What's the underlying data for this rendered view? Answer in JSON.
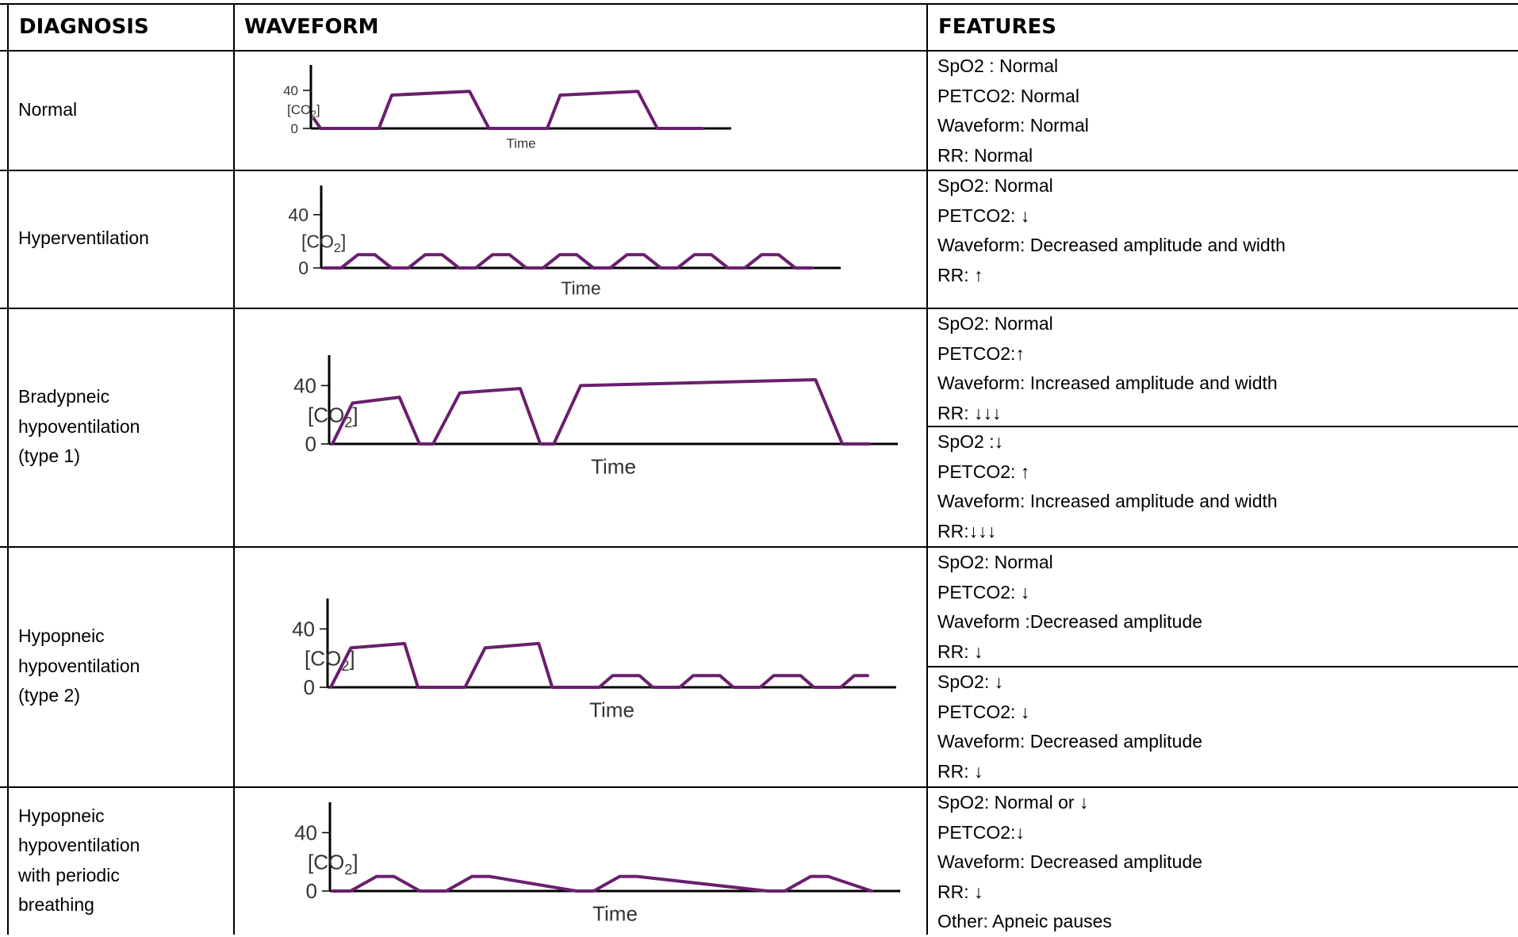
{
  "headers": {
    "diagnosis": "DIAGNOSIS",
    "waveform": "WAVEFORM",
    "features": "FEATURES"
  },
  "waveform_labels": {
    "y_high": "40",
    "y_low": "0",
    "y_label": "[CO2]",
    "x_label": "Time"
  },
  "colors": {
    "trace": "#6a1f6e",
    "grid": "#000000"
  },
  "rows": [
    {
      "diagnosis": [
        "Normal"
      ],
      "features": [
        [
          "SpO2 : Normal",
          "PETCO2: Normal",
          "Waveform: Normal",
          "RR: Normal"
        ]
      ]
    },
    {
      "diagnosis": [
        "Hyperventilation"
      ],
      "features": [
        [
          "SpO2:  Normal",
          "PETCO2:  ↓",
          "Waveform: Decreased amplitude and width",
          "RR: ↑"
        ]
      ]
    },
    {
      "diagnosis": [
        "Bradypneic",
        "hypoventilation",
        "(type 1)"
      ],
      "features": [
        [
          "SpO2: Normal",
          "PETCO2:↑",
          "Waveform: Increased amplitude and width",
          "RR: ↓↓↓"
        ],
        [
          "SpO2 :↓",
          "PETCO2: ↑",
          "Waveform: Increased amplitude and width",
          "RR:↓↓↓"
        ]
      ]
    },
    {
      "diagnosis": [
        "Hypopneic",
        "hypoventilation",
        "(type 2)"
      ],
      "features": [
        [
          "SpO2: Normal",
          "PETCO2: ↓",
          "Waveform :Decreased amplitude",
          "RR: ↓"
        ],
        [
          "SpO2: ↓",
          "PETCO2: ↓",
          "Waveform: Decreased amplitude",
          "RR: ↓"
        ]
      ]
    },
    {
      "diagnosis": [
        "Hypopneic",
        "hypoventilation",
        "with periodic",
        "breathing"
      ],
      "features": [
        [
          "SpO2: Normal or ↓",
          "PETCO2:↓",
          "Waveform: Decreased amplitude",
          "RR: ↓",
          "Other: Apneic pauses"
        ]
      ]
    }
  ],
  "chart_data": [
    {
      "type": "line",
      "name": "normal",
      "xlabel": "Time",
      "ylabel": "[CO2]",
      "yticks": [
        0,
        40
      ],
      "ylim": [
        0,
        50
      ],
      "x": [
        0,
        1,
        2,
        10,
        12,
        24,
        27,
        36,
        38,
        50,
        53,
        60
      ],
      "y": [
        10,
        0,
        0,
        0,
        35,
        39,
        0,
        0,
        35,
        39,
        0,
        0
      ]
    },
    {
      "type": "line",
      "name": "hyperventilation",
      "xlabel": "Time",
      "ylabel": "[CO2]",
      "yticks": [
        0,
        40
      ],
      "ylim": [
        0,
        50
      ],
      "x": [
        0,
        2,
        4,
        6,
        8,
        10,
        12,
        14,
        16,
        18,
        20,
        22,
        24,
        26,
        28,
        30,
        32,
        34,
        36,
        38,
        40,
        42,
        44,
        46,
        48,
        50,
        52,
        54,
        56,
        58
      ],
      "y": [
        0,
        0,
        10,
        10,
        0,
        0,
        10,
        10,
        0,
        0,
        10,
        10,
        0,
        0,
        10,
        10,
        0,
        0,
        10,
        10,
        0,
        0,
        10,
        10,
        0,
        0,
        10,
        10,
        0,
        0
      ]
    },
    {
      "type": "line",
      "name": "bradypneic",
      "xlabel": "Time",
      "ylabel": "[CO2]",
      "yticks": [
        0,
        40
      ],
      "ylim": [
        0,
        50
      ],
      "x": [
        0,
        3,
        10,
        13,
        15,
        19,
        28,
        31,
        33,
        37,
        72,
        76,
        80
      ],
      "y": [
        0,
        28,
        32,
        0,
        0,
        35,
        38,
        0,
        0,
        40,
        44,
        0,
        0
      ]
    },
    {
      "type": "line",
      "name": "hypopneic-type-2",
      "xlabel": "Time",
      "ylabel": "[CO2]",
      "yticks": [
        0,
        40
      ],
      "ylim": [
        0,
        50
      ],
      "x": [
        0,
        3,
        11,
        13,
        20,
        23,
        31,
        33,
        40,
        42,
        46,
        48,
        52,
        54,
        58,
        60,
        64,
        66,
        70,
        72,
        76,
        78,
        80
      ],
      "y": [
        0,
        27,
        30,
        0,
        0,
        27,
        30,
        0,
        0,
        8,
        8,
        0,
        0,
        8,
        8,
        0,
        0,
        8,
        8,
        0,
        0,
        8,
        8
      ]
    },
    {
      "type": "line",
      "name": "hypopneic-periodic",
      "xlabel": "Time",
      "ylabel": "[CO2]",
      "yticks": [
        0,
        40
      ],
      "ylim": [
        0,
        50
      ],
      "x": [
        0,
        2,
        5,
        7,
        10,
        13,
        16,
        18,
        28,
        30,
        33,
        35,
        50,
        52,
        55,
        57,
        62
      ],
      "y": [
        0,
        0,
        10,
        10,
        0,
        0,
        10,
        10,
        0,
        0,
        10,
        10,
        0,
        0,
        10,
        10,
        0
      ]
    }
  ]
}
